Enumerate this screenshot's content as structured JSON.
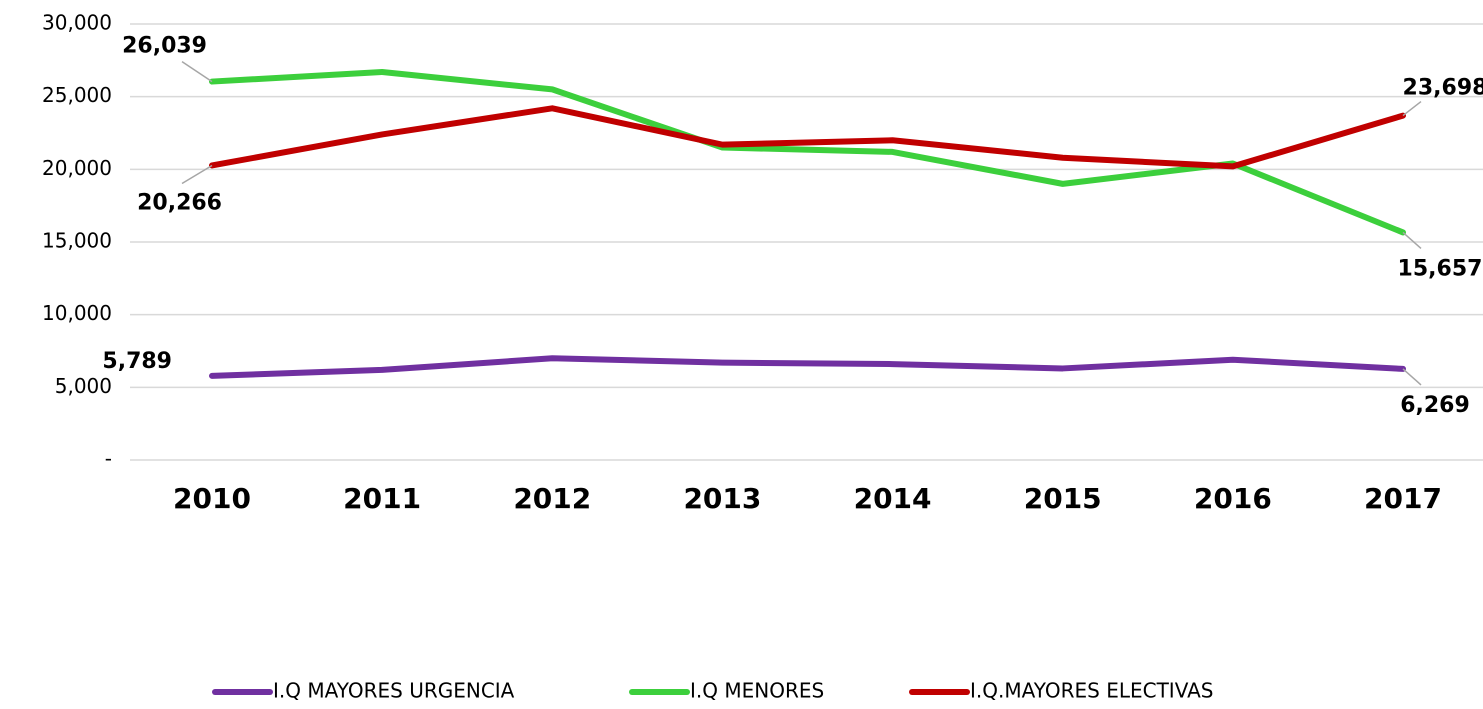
{
  "chart_data": {
    "type": "line",
    "categories": [
      "2010",
      "2011",
      "2012",
      "2013",
      "2014",
      "2015",
      "2016",
      "2017"
    ],
    "series": [
      {
        "name": "I.Q MAYORES URGENCIA",
        "color": "#7030a0",
        "values": [
          5789,
          6200,
          7000,
          6700,
          6600,
          6300,
          6900,
          6269
        ],
        "value_labels": [
          "5,789",
          null,
          null,
          null,
          null,
          null,
          null,
          "6,269"
        ]
      },
      {
        "name": "I.Q MENORES",
        "color": "#3ccf3c",
        "values": [
          26039,
          26700,
          25500,
          21500,
          21200,
          19000,
          20400,
          15657
        ],
        "value_labels": [
          "26,039",
          null,
          null,
          null,
          null,
          null,
          null,
          "15,657"
        ]
      },
      {
        "name": "I.Q.MAYORES ELECTIVAS",
        "color": "#c00000",
        "values": [
          20266,
          22400,
          24200,
          21700,
          22000,
          20800,
          20200,
          23698
        ],
        "value_labels": [
          "20,266",
          null,
          null,
          null,
          null,
          null,
          null,
          "23,698"
        ]
      }
    ],
    "ylim": [
      0,
      30000
    ],
    "yticks": [
      {
        "value": 0,
        "label": "-"
      },
      {
        "value": 5000,
        "label": "5,000"
      },
      {
        "value": 10000,
        "label": "10,000"
      },
      {
        "value": 15000,
        "label": "15,000"
      },
      {
        "value": 20000,
        "label": "20,000"
      },
      {
        "value": 25000,
        "label": "25,000"
      },
      {
        "value": 30000,
        "label": "30,000"
      }
    ],
    "grid": true,
    "legend": "bottom"
  }
}
